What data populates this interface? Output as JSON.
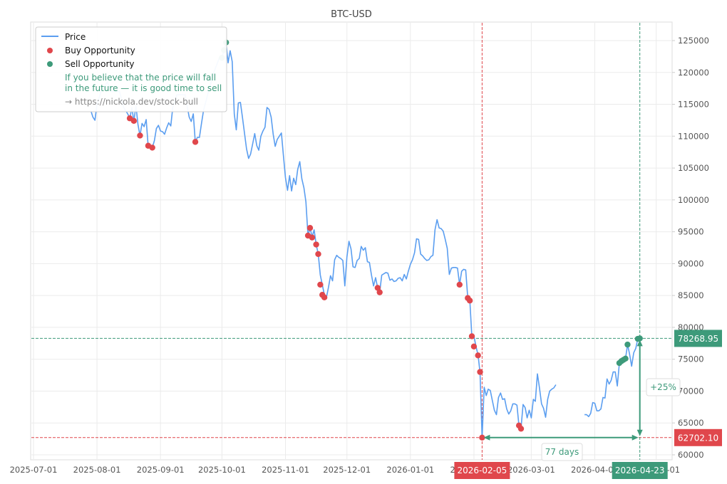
{
  "chart_data": {
    "type": "line",
    "title": "BTC-USD",
    "xlabel": "",
    "ylabel": "",
    "grid": true,
    "legend_position": "upper left",
    "ylim": [
      59000,
      128000
    ],
    "y_ticks": [
      60000,
      65000,
      70000,
      75000,
      80000,
      85000,
      90000,
      95000,
      100000,
      105000,
      110000,
      115000,
      120000,
      125000
    ],
    "y_axis_side": "right",
    "x_ticks": [
      "2025-07-01",
      "2025-08-01",
      "2025-09-01",
      "2025-10-01",
      "2025-11-01",
      "2025-12-01",
      "2026-01-01",
      "2026-02-01",
      "2026-03-01",
      "2026-04-01",
      "2026-05-01"
    ],
    "x_start": "2025-06-29",
    "legend": [
      {
        "label": "Price",
        "kind": "line",
        "color": "#5b9ef0"
      },
      {
        "label": "Buy Opportunity",
        "kind": "marker",
        "color": "#e0474c"
      },
      {
        "label": "Sell Opportunity",
        "kind": "marker",
        "color": "#3d9a7a"
      }
    ],
    "legend_note": [
      "If you believe that the price will fall",
      "in the future — it is good time to sell"
    ],
    "legend_link": "→ https://nickola.dev/stock-bull",
    "series": [
      {
        "name": "Price",
        "color": "#5b9ef0",
        "points_day_value": [
          [
            30,
            114000
          ],
          [
            31,
            113000
          ],
          [
            32,
            112500
          ],
          [
            33,
            115000
          ],
          [
            35,
            117000
          ],
          [
            38,
            118500
          ],
          [
            40,
            117000
          ],
          [
            44,
            117000
          ],
          [
            46,
            114500
          ],
          [
            48,
            113500
          ],
          [
            49,
            112800
          ],
          [
            50,
            114500
          ],
          [
            51,
            112300
          ],
          [
            52,
            114800
          ],
          [
            53,
            111800
          ],
          [
            54,
            110100
          ],
          [
            55,
            112000
          ],
          [
            56,
            111500
          ],
          [
            57,
            112600
          ],
          [
            58,
            108400
          ],
          [
            59,
            108300
          ],
          [
            60,
            108200
          ],
          [
            61,
            109300
          ],
          [
            62,
            111200
          ],
          [
            63,
            111700
          ],
          [
            64,
            110800
          ],
          [
            65,
            110700
          ],
          [
            66,
            110300
          ],
          [
            67,
            111300
          ],
          [
            68,
            112100
          ],
          [
            69,
            111600
          ],
          [
            70,
            114500
          ],
          [
            72,
            116500
          ],
          [
            76,
            116500
          ],
          [
            78,
            113000
          ],
          [
            79,
            112300
          ],
          [
            80,
            113500
          ],
          [
            81,
            109100
          ],
          [
            82,
            109800
          ],
          [
            83,
            109800
          ],
          [
            84,
            112000
          ],
          [
            85,
            114000
          ],
          [
            87,
            116500
          ],
          [
            90,
            120000
          ],
          [
            93,
            122500
          ],
          [
            94,
            122300
          ],
          [
            95,
            123500
          ],
          [
            96,
            124700
          ],
          [
            97,
            121500
          ],
          [
            98,
            123400
          ],
          [
            99,
            121700
          ],
          [
            100,
            113500
          ],
          [
            101,
            111000
          ],
          [
            102,
            115200
          ],
          [
            103,
            115300
          ],
          [
            104,
            113000
          ],
          [
            105,
            110500
          ],
          [
            106,
            108000
          ],
          [
            107,
            106500
          ],
          [
            108,
            107200
          ],
          [
            109,
            108800
          ],
          [
            110,
            110400
          ],
          [
            111,
            108500
          ],
          [
            112,
            107800
          ],
          [
            113,
            110000
          ],
          [
            114,
            110800
          ],
          [
            115,
            111400
          ],
          [
            116,
            114500
          ],
          [
            117,
            114200
          ],
          [
            118,
            113000
          ],
          [
            119,
            110300
          ],
          [
            120,
            108400
          ],
          [
            121,
            109500
          ],
          [
            122,
            110000
          ],
          [
            123,
            110500
          ],
          [
            124,
            107000
          ],
          [
            125,
            103500
          ],
          [
            126,
            101500
          ],
          [
            127,
            103800
          ],
          [
            128,
            101400
          ],
          [
            129,
            103400
          ],
          [
            130,
            102400
          ],
          [
            131,
            104800
          ],
          [
            132,
            106000
          ],
          [
            133,
            103300
          ],
          [
            134,
            101900
          ],
          [
            135,
            99700
          ],
          [
            136,
            94400
          ],
          [
            137,
            95600
          ],
          [
            138,
            94200
          ],
          [
            139,
            95300
          ],
          [
            140,
            93000
          ],
          [
            141,
            91500
          ],
          [
            142,
            88200
          ],
          [
            143,
            86700
          ],
          [
            144,
            85100
          ],
          [
            145,
            84700
          ],
          [
            146,
            86300
          ],
          [
            147,
            88100
          ],
          [
            148,
            87300
          ],
          [
            149,
            90600
          ],
          [
            150,
            91300
          ],
          [
            151,
            91000
          ],
          [
            152,
            90800
          ],
          [
            153,
            90500
          ],
          [
            154,
            86500
          ],
          [
            155,
            91000
          ],
          [
            156,
            93500
          ],
          [
            157,
            92300
          ],
          [
            158,
            89500
          ],
          [
            159,
            89400
          ],
          [
            160,
            90500
          ],
          [
            161,
            90800
          ],
          [
            162,
            92700
          ],
          [
            163,
            92100
          ],
          [
            164,
            92500
          ],
          [
            165,
            90300
          ],
          [
            166,
            90200
          ],
          [
            167,
            88200
          ],
          [
            168,
            86500
          ],
          [
            169,
            87800
          ],
          [
            170,
            86200
          ],
          [
            171,
            85500
          ],
          [
            172,
            88200
          ],
          [
            173,
            88400
          ],
          [
            174,
            88600
          ],
          [
            175,
            88500
          ],
          [
            176,
            87400
          ],
          [
            177,
            87600
          ],
          [
            178,
            87200
          ],
          [
            179,
            87300
          ],
          [
            180,
            87700
          ],
          [
            181,
            87800
          ],
          [
            182,
            87300
          ],
          [
            183,
            88300
          ],
          [
            184,
            87600
          ],
          [
            185,
            88800
          ],
          [
            186,
            89900
          ],
          [
            187,
            90600
          ],
          [
            188,
            91700
          ],
          [
            189,
            93900
          ],
          [
            190,
            93800
          ],
          [
            191,
            91500
          ],
          [
            192,
            91200
          ],
          [
            193,
            90800
          ],
          [
            194,
            90500
          ],
          [
            195,
            90600
          ],
          [
            196,
            91100
          ],
          [
            197,
            91300
          ],
          [
            198,
            95300
          ],
          [
            199,
            96900
          ],
          [
            200,
            95600
          ],
          [
            201,
            95500
          ],
          [
            202,
            95100
          ],
          [
            203,
            93800
          ],
          [
            204,
            92400
          ],
          [
            205,
            88300
          ],
          [
            206,
            89300
          ],
          [
            207,
            89400
          ],
          [
            208,
            89400
          ],
          [
            209,
            89300
          ],
          [
            210,
            86700
          ],
          [
            211,
            88800
          ],
          [
            212,
            89100
          ],
          [
            213,
            89000
          ],
          [
            214,
            84600
          ],
          [
            215,
            84200
          ],
          [
            216,
            78600
          ],
          [
            217,
            78700
          ],
          [
            218,
            77000
          ],
          [
            219,
            75700
          ],
          [
            220,
            72900
          ],
          [
            221,
            62700
          ],
          [
            222,
            70600
          ],
          [
            223,
            69300
          ],
          [
            224,
            70300
          ],
          [
            225,
            70100
          ],
          [
            226,
            68500
          ],
          [
            227,
            67000
          ],
          [
            228,
            66300
          ],
          [
            229,
            69000
          ],
          [
            230,
            69700
          ],
          [
            231,
            68700
          ],
          [
            232,
            68800
          ],
          [
            233,
            67200
          ],
          [
            234,
            66400
          ],
          [
            235,
            66900
          ],
          [
            236,
            68000
          ],
          [
            237,
            68000
          ],
          [
            238,
            67800
          ],
          [
            239,
            64600
          ],
          [
            240,
            64200
          ],
          [
            241,
            67900
          ],
          [
            242,
            67400
          ],
          [
            243,
            65800
          ],
          [
            244,
            67000
          ],
          [
            245,
            65800
          ],
          [
            246,
            68700
          ],
          [
            247,
            68400
          ],
          [
            248,
            72700
          ],
          [
            249,
            70500
          ],
          [
            250,
            68000
          ],
          [
            251,
            67300
          ],
          [
            252,
            65900
          ],
          [
            253,
            68700
          ],
          [
            254,
            70000
          ],
          [
            255,
            70300
          ],
          [
            256,
            70500
          ],
          [
            257,
            71000
          ]
        ],
        "gap_after_day": 257,
        "points_day_value_2": [
          [
            271,
            66300
          ],
          [
            272,
            66300
          ],
          [
            273,
            66000
          ],
          [
            274,
            66500
          ],
          [
            275,
            68200
          ],
          [
            276,
            68100
          ],
          [
            277,
            66900
          ],
          [
            278,
            66900
          ],
          [
            279,
            67200
          ],
          [
            280,
            69000
          ],
          [
            281,
            68900
          ],
          [
            282,
            71900
          ],
          [
            283,
            71100
          ],
          [
            284,
            71700
          ],
          [
            285,
            73000
          ],
          [
            286,
            73000
          ],
          [
            287,
            70800
          ],
          [
            288,
            74400
          ],
          [
            289,
            74600
          ],
          [
            290,
            74900
          ],
          [
            291,
            75100
          ],
          [
            292,
            77300
          ],
          [
            293,
            75800
          ],
          [
            294,
            73900
          ],
          [
            295,
            76000
          ],
          [
            296,
            76700
          ],
          [
            297,
            78200
          ],
          [
            298,
            78269
          ]
        ]
      },
      {
        "name": "Buy Opportunity",
        "color": "#e0474c",
        "points_day_value": [
          [
            49,
            112800
          ],
          [
            51,
            112400
          ],
          [
            54,
            110100
          ],
          [
            58,
            108500
          ],
          [
            60,
            108200
          ],
          [
            81,
            109100
          ],
          [
            136,
            94400
          ],
          [
            137,
            95600
          ],
          [
            138,
            94100
          ],
          [
            140,
            93000
          ],
          [
            141,
            91500
          ],
          [
            142,
            86700
          ],
          [
            143,
            85100
          ],
          [
            144,
            84700
          ],
          [
            170,
            86200
          ],
          [
            171,
            85500
          ],
          [
            210,
            86700
          ],
          [
            214,
            84600
          ],
          [
            215,
            84200
          ],
          [
            216,
            78600
          ],
          [
            217,
            77000
          ],
          [
            219,
            75600
          ],
          [
            220,
            73000
          ],
          [
            221,
            62702
          ],
          [
            239,
            64600
          ],
          [
            240,
            64100
          ]
        ]
      },
      {
        "name": "Sell Opportunity",
        "color": "#3d9a7a",
        "points_day_value": [
          [
            94,
            122300
          ],
          [
            95,
            123500
          ],
          [
            96,
            124700
          ],
          [
            288,
            74400
          ],
          [
            289,
            74700
          ],
          [
            290,
            74900
          ],
          [
            291,
            75100
          ],
          [
            292,
            77300
          ],
          [
            297,
            78200
          ],
          [
            298,
            78269
          ]
        ]
      }
    ],
    "reference_lines": {
      "buy_price": {
        "value": 62702.1,
        "label": "62702.10",
        "color": "#e0474c"
      },
      "sell_price": {
        "value": 78268.95,
        "label": "78268.95",
        "color": "#3d9a7a"
      },
      "buy_date": {
        "day": 221,
        "label": "2026-02-05",
        "color": "#e0474c"
      },
      "sell_date": {
        "day": 298,
        "label": "2026-04-23",
        "color": "#3d9a7a"
      }
    },
    "annotations": {
      "duration_label": "77 days",
      "change_label": "+25%"
    }
  }
}
